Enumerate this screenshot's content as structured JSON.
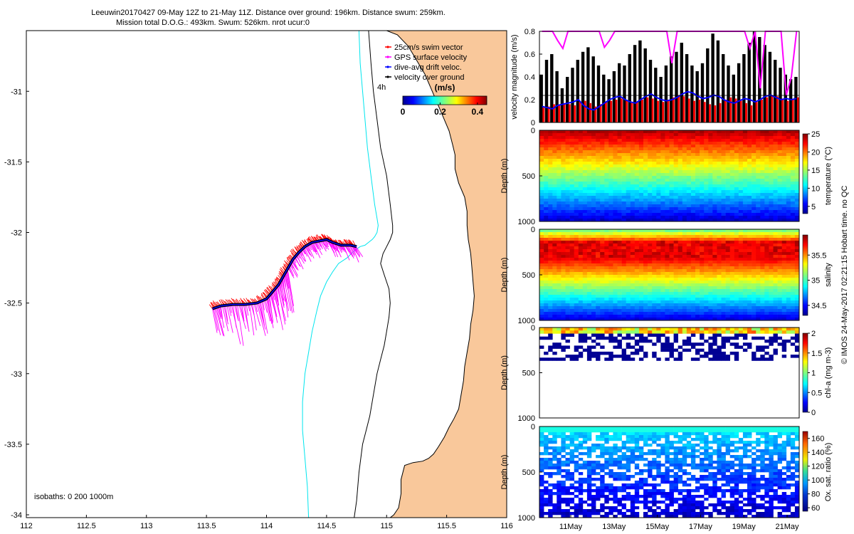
{
  "title": {
    "line1": "Leeuwin20170427 09-May 12Z to 21-May 11Z. Distance over ground: 196km. Distance swum: 259km.",
    "line2": "Mission total D.O.G.: 493km. Swum: 526km. nrot ucur:0"
  },
  "footer_note": "© IMOS 24-May-2017 02:21:15 Hobart time. no QC",
  "colors": {
    "land": "#f9c89b",
    "coast": "#000000",
    "isobath_200": "#000000",
    "isobath_1000": "#00e5ee",
    "swim_vector": "#ff0000",
    "gps_surface": "#ff00ff",
    "dive_avg": "#0000ff",
    "over_ground": "#000000"
  },
  "chart_data": [
    {
      "id": "track_map",
      "type": "scatter",
      "x_ticks": [
        "112",
        "112.5",
        "113",
        "113.5",
        "114",
        "114.5",
        "115",
        "115.5",
        "116"
      ],
      "y_ticks": [
        "-31",
        "-31.5",
        "-32",
        "-32.5",
        "-33",
        "-33.5",
        "-34"
      ],
      "xlim": [
        112,
        116
      ],
      "ylim": [
        -34.02,
        -30.57
      ],
      "grid": false,
      "legend_position": "top-right",
      "legend": [
        {
          "label": "25cm/s swim vector",
          "color": "#ff0000"
        },
        {
          "label": "GPS surface velocity",
          "color": "#ff00ff"
        },
        {
          "label": "dive-avg drift veloc.",
          "color": "#0000ff"
        },
        {
          "label": "velocity over ground",
          "color": "#000000"
        }
      ],
      "colorbar": {
        "label": "(m/s)",
        "ticks": [
          "0",
          "0.2",
          "0.4"
        ],
        "range": [
          0,
          0.45
        ],
        "note": "4h"
      },
      "annotation": "isobaths: 0   200   1000m",
      "track": {
        "lon": [
          113.55,
          113.62,
          113.72,
          113.82,
          113.92,
          114.0,
          114.05,
          114.1,
          114.14,
          114.18,
          114.22,
          114.27,
          114.32,
          114.38,
          114.44,
          114.5,
          114.55,
          114.62,
          114.7,
          114.75
        ],
        "lat": [
          -32.54,
          -32.52,
          -32.51,
          -32.51,
          -32.5,
          -32.47,
          -32.42,
          -32.37,
          -32.31,
          -32.25,
          -32.19,
          -32.14,
          -32.1,
          -32.07,
          -32.06,
          -32.05,
          -32.07,
          -32.09,
          -32.09,
          -32.1
        ]
      },
      "coastline": {
        "lon": [
          115.0,
          115.09,
          115.18,
          115.25,
          115.32,
          115.37,
          115.42,
          115.47,
          115.52,
          115.55,
          115.57,
          115.57,
          115.6,
          115.65,
          115.67,
          115.67,
          115.68,
          115.7,
          115.71,
          115.72,
          115.73,
          115.72,
          115.7,
          115.69,
          115.67,
          115.65,
          115.64,
          115.62,
          115.6,
          115.56,
          115.52,
          115.48,
          115.43,
          115.39,
          115.35,
          115.3,
          115.22,
          115.15,
          115.12,
          115.12,
          115.1,
          115.06,
          115.03,
          115.0
        ],
        "lat": [
          -30.57,
          -30.6,
          -30.68,
          -30.78,
          -30.88,
          -30.98,
          -31.08,
          -31.18,
          -31.28,
          -31.38,
          -31.45,
          -31.55,
          -31.65,
          -31.75,
          -31.85,
          -31.95,
          -32.05,
          -32.15,
          -32.25,
          -32.35,
          -32.45,
          -32.55,
          -32.65,
          -32.75,
          -32.85,
          -32.95,
          -33.05,
          -33.15,
          -33.25,
          -33.32,
          -33.38,
          -33.45,
          -33.52,
          -33.57,
          -33.6,
          -33.62,
          -33.63,
          -33.65,
          -33.75,
          -33.85,
          -33.95,
          -34.0,
          -34.02,
          -34.02
        ]
      },
      "isobath_200": {
        "lon": [
          114.85,
          114.87,
          114.89,
          114.92,
          114.95,
          115.0,
          115.03,
          115.05,
          115.05,
          115.03,
          115.0,
          114.97,
          114.95,
          114.98,
          115.02,
          115.03,
          115.02,
          115.0,
          114.98,
          114.95,
          114.92,
          114.9,
          114.88,
          114.86,
          114.83,
          114.8,
          114.77,
          114.75,
          114.73
        ],
        "lat": [
          -30.57,
          -30.8,
          -31.0,
          -31.2,
          -31.4,
          -31.6,
          -31.8,
          -31.95,
          -32.0,
          -32.05,
          -32.1,
          -32.15,
          -32.22,
          -32.3,
          -32.4,
          -32.5,
          -32.6,
          -32.7,
          -32.8,
          -32.9,
          -33.0,
          -33.1,
          -33.2,
          -33.3,
          -33.4,
          -33.5,
          -33.7,
          -33.9,
          -34.02
        ]
      },
      "isobath_1000": {
        "lon": [
          114.77,
          114.78,
          114.8,
          114.82,
          114.84,
          114.87,
          114.9,
          114.92,
          114.93,
          114.92,
          114.9,
          114.88,
          114.85,
          114.82,
          114.78,
          114.73,
          114.67,
          114.6,
          114.55,
          114.5,
          114.45,
          114.42,
          114.38,
          114.35,
          114.32,
          114.3,
          114.3,
          114.32,
          114.34,
          114.35
        ],
        "lat": [
          -30.57,
          -30.8,
          -31.0,
          -31.2,
          -31.4,
          -31.6,
          -31.8,
          -31.9,
          -31.95,
          -32.0,
          -32.03,
          -32.05,
          -32.07,
          -32.09,
          -32.1,
          -32.13,
          -32.18,
          -32.22,
          -32.28,
          -32.35,
          -32.45,
          -32.55,
          -32.7,
          -32.85,
          -33.0,
          -33.2,
          -33.4,
          -33.6,
          -33.8,
          -34.02
        ]
      }
    },
    {
      "id": "velocity",
      "type": "bar",
      "ylabel": "velocity magnitude (m/s)",
      "y_ticks": [
        "0",
        "0.2",
        "0.4",
        "0.6",
        "0.8"
      ],
      "ylim": [
        0,
        0.8
      ],
      "series": [
        {
          "color": "#ff0000",
          "values": [
            0.13,
            0.14,
            0.16,
            0.15,
            0.17,
            0.16,
            0.15,
            0.18,
            0.19,
            0.17,
            0.14,
            0.16,
            0.18,
            0.19,
            0.2,
            0.21,
            0.19,
            0.17,
            0.18,
            0.2,
            0.22,
            0.21,
            0.19,
            0.18,
            0.2,
            0.22,
            0.24,
            0.23,
            0.21,
            0.19,
            0.2,
            0.18,
            0.16,
            0.15,
            0.17,
            0.2,
            0.22,
            0.21,
            0.19,
            0.17,
            0.15,
            0.18,
            0.2,
            0.22,
            0.24,
            0.23,
            0.21,
            0.19,
            0.2,
            0.22
          ]
        },
        {
          "color": "#000000",
          "values": [
            0.42,
            0.55,
            0.6,
            0.45,
            0.3,
            0.4,
            0.48,
            0.55,
            0.62,
            0.66,
            0.58,
            0.5,
            0.42,
            0.38,
            0.45,
            0.52,
            0.5,
            0.6,
            0.68,
            0.72,
            0.65,
            0.55,
            0.48,
            0.4,
            0.5,
            0.58,
            0.62,
            0.7,
            0.6,
            0.5,
            0.45,
            0.52,
            0.65,
            0.78,
            0.72,
            0.6,
            0.5,
            0.42,
            0.52,
            0.6,
            0.7,
            0.8,
            0.75,
            0.68,
            0.62,
            0.55,
            0.48,
            0.42,
            0.38,
            0.4
          ]
        },
        {
          "color": "#0000ff",
          "values": [
            0.14,
            0.13,
            0.12,
            0.15,
            0.16,
            0.17,
            0.18,
            0.2,
            0.15,
            0.12,
            0.11,
            0.14,
            0.17,
            0.2,
            0.22,
            0.23,
            0.2,
            0.18,
            0.17,
            0.2,
            0.23,
            0.25,
            0.22,
            0.2,
            0.19,
            0.2,
            0.22,
            0.25,
            0.27,
            0.26,
            0.23,
            0.21,
            0.22,
            0.24,
            0.23,
            0.2,
            0.18,
            0.17,
            0.19,
            0.21,
            0.2,
            0.18,
            0.2,
            0.23,
            0.24,
            0.22,
            0.2,
            0.21,
            0.2,
            0.21
          ]
        },
        {
          "color": "#ff00ff",
          "values": [
            0.8,
            0.8,
            0.8,
            0.72,
            0.65,
            0.8,
            0.8,
            0.8,
            0.8,
            0.8,
            0.8,
            0.8,
            0.66,
            0.72,
            0.8,
            0.8,
            0.8,
            0.8,
            0.8,
            0.8,
            0.8,
            0.8,
            0.8,
            0.8,
            0.8,
            0.52,
            0.8,
            0.8,
            0.8,
            0.8,
            0.8,
            0.8,
            0.8,
            0.8,
            0.8,
            0.8,
            0.8,
            0.8,
            0.8,
            0.8,
            0.65,
            0.8,
            0.3,
            0.8,
            0.8,
            0.8,
            0.8,
            0.24,
            0.4,
            0.8
          ]
        }
      ]
    },
    {
      "id": "temperature",
      "type": "heatmap",
      "ylabel": "Depth (m)",
      "y_ticks": [
        "0",
        "500",
        "1000"
      ],
      "ylim": [
        1000,
        0
      ],
      "colorbar": {
        "label": "temperature (°C)",
        "ticks": [
          "5",
          "10",
          "15",
          "20",
          "25"
        ],
        "range": [
          3,
          25
        ]
      }
    },
    {
      "id": "salinity",
      "type": "heatmap",
      "ylabel": "Depth (m)",
      "y_ticks": [
        "0",
        "500",
        "1000"
      ],
      "ylim": [
        1000,
        0
      ],
      "colorbar": {
        "label": "salinity",
        "ticks": [
          "34.5",
          "35",
          "35.5"
        ],
        "range": [
          34.3,
          35.9
        ]
      }
    },
    {
      "id": "chla",
      "type": "heatmap",
      "ylabel": "Depth (m)",
      "y_ticks": [
        "0",
        "500",
        "1000"
      ],
      "ylim": [
        1000,
        0
      ],
      "colorbar": {
        "label": "chl-a (mg m-3)",
        "ticks": [
          "0",
          "0.5",
          "1",
          "1.5",
          "2"
        ],
        "range": [
          0,
          2
        ]
      }
    },
    {
      "id": "oxygen",
      "type": "heatmap",
      "ylabel": "Depth (m)",
      "y_ticks": [
        "0",
        "500",
        "1000"
      ],
      "ylim": [
        1000,
        0
      ],
      "x_ticks": [
        "11May",
        "13May",
        "15May",
        "17May",
        "19May",
        "21May"
      ],
      "colorbar": {
        "label": "Ox. sat. ratio (%)",
        "ticks": [
          "60",
          "80",
          "100",
          "120",
          "140",
          "160"
        ],
        "range": [
          55,
          170
        ]
      }
    }
  ]
}
